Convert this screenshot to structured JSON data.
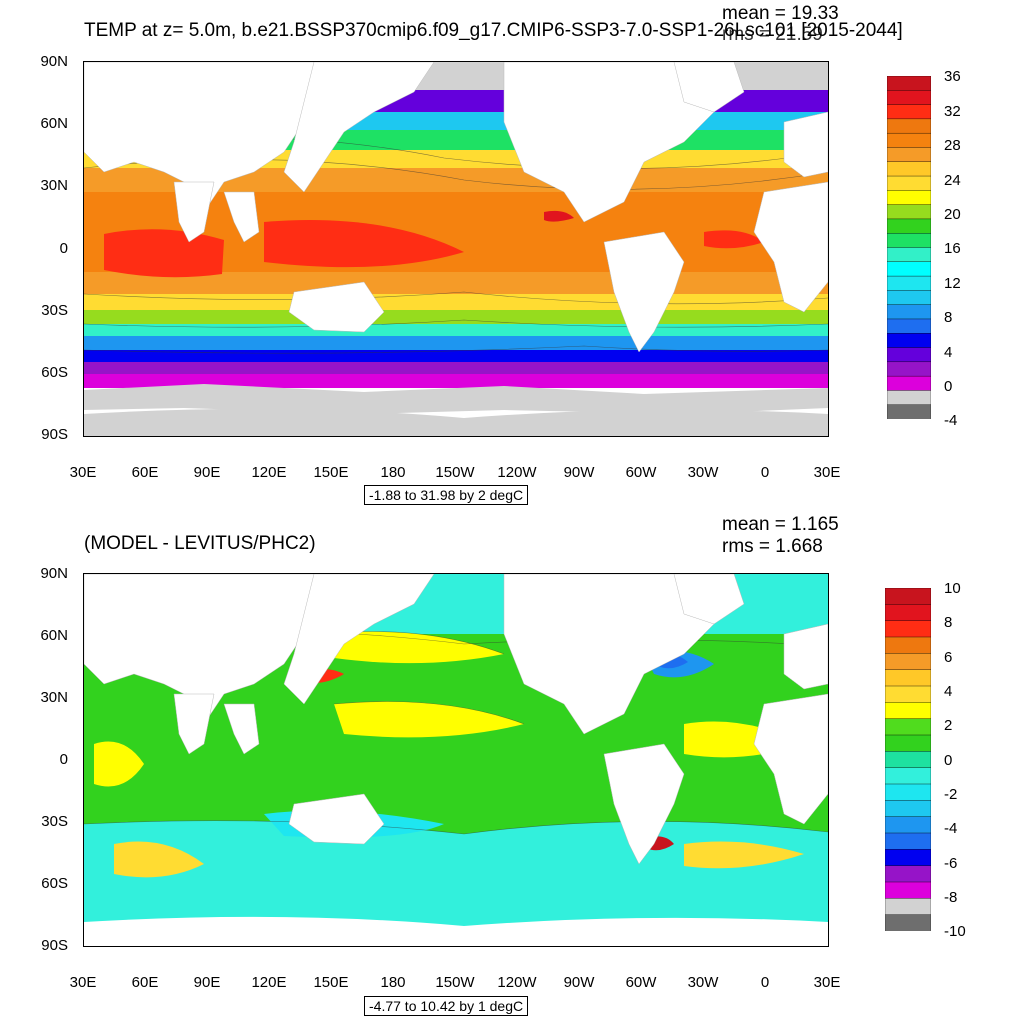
{
  "panel_top": {
    "title": "TEMP at z=   5.0m, b.e21.BSSP370cmip6.f09_g17.CMIP6-SSP3-7.0-SSP1-26Lsc101 [2015-2044]",
    "mean": "mean = 19.33",
    "rms": "rms = 21.59",
    "lat_labels": [
      "90N",
      "60N",
      "30N",
      "0",
      "30S",
      "60S",
      "90S"
    ],
    "lon_labels": [
      "30E",
      "60E",
      "90E",
      "120E",
      "150E",
      "180",
      "150W",
      "120W",
      "90W",
      "60W",
      "30W",
      "0",
      "30E"
    ],
    "contour_info": "-1.88 to 31.98 by 2 degC",
    "colorbar_labels": [
      "36",
      "32",
      "28",
      "24",
      "20",
      "16",
      "12",
      "8",
      "4",
      "0",
      "-4"
    ],
    "colorbar_colors": [
      "#c8141e",
      "#e1141e",
      "#ff2d14",
      "#ee780f",
      "#f5820f",
      "#f59b28",
      "#ffc828",
      "#ffdc32",
      "#ffff00",
      "#96dc1e",
      "#32d21e",
      "#1ee164",
      "#32f0c8",
      "#00ffff",
      "#1ee6f0",
      "#1ec8f0",
      "#1e96f0",
      "#1e6ef0",
      "#0000f0",
      "#6400dc",
      "#9614c8",
      "#dc00dc",
      "#d2d2d2",
      "#6e6e6e"
    ]
  },
  "panel_bottom": {
    "title": "(MODEL - LEVITUS/PHC2)",
    "mean": "mean = 1.165",
    "rms": "rms = 1.668",
    "lat_labels": [
      "90N",
      "60N",
      "30N",
      "0",
      "30S",
      "60S",
      "90S"
    ],
    "lon_labels": [
      "30E",
      "60E",
      "90E",
      "120E",
      "150E",
      "180",
      "150W",
      "120W",
      "90W",
      "60W",
      "30W",
      "0",
      "30E"
    ],
    "contour_info": "-4.77 to 10.42 by 1 degC",
    "colorbar_labels": [
      "10",
      "8",
      "6",
      "4",
      "2",
      "0",
      "-2",
      "-4",
      "-6",
      "-8",
      "-10"
    ],
    "colorbar_colors": [
      "#c8141e",
      "#e1141e",
      "#ff2d14",
      "#ee780f",
      "#f59b28",
      "#ffc828",
      "#ffdc32",
      "#ffff00",
      "#50dc1e",
      "#32d21e",
      "#1ee1a0",
      "#32f0dc",
      "#1ee6f0",
      "#1ec8f0",
      "#1e96f0",
      "#1e6ef0",
      "#0000f0",
      "#9614c8",
      "#dc00dc",
      "#d2d2d2",
      "#6e6e6e"
    ]
  }
}
